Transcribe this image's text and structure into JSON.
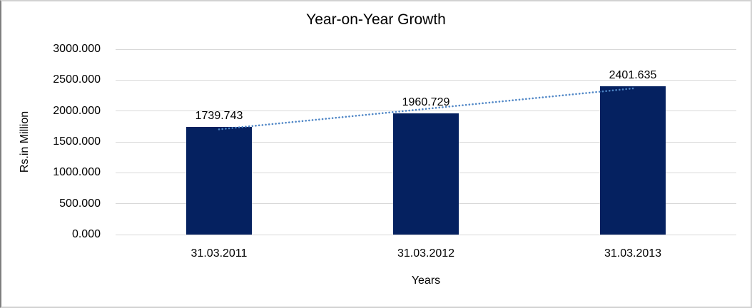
{
  "chart_data": {
    "type": "bar",
    "title": "Year-on-Year Growth",
    "categories": [
      "31.03.2011",
      "31.03.2012",
      "31.03.2013"
    ],
    "values": [
      1739.743,
      1960.729,
      2401.635
    ],
    "data_labels": [
      "1739.743",
      "1960.729",
      "2401.635"
    ],
    "xlabel": "Years",
    "ylabel": "Rs.in Million",
    "ylim": [
      0,
      3000
    ],
    "ytick_step": 500,
    "ytick_labels_top_to_bottom": [
      "3000.000",
      "2500.000",
      "2000.000",
      "1500.000",
      "1000.000",
      "500.000",
      "0.000"
    ],
    "grid": true,
    "legend": "none",
    "trendline": {
      "type": "linear-least-squares",
      "style": "dotted",
      "fitted_endpoint_values": [
        1703.09,
        2364.982
      ]
    },
    "colors": {
      "bar": "#052160",
      "trendline": "#4f86c6",
      "gridline": "#d9d9d9",
      "text": "#000000",
      "border": "#d2d2d2"
    }
  }
}
